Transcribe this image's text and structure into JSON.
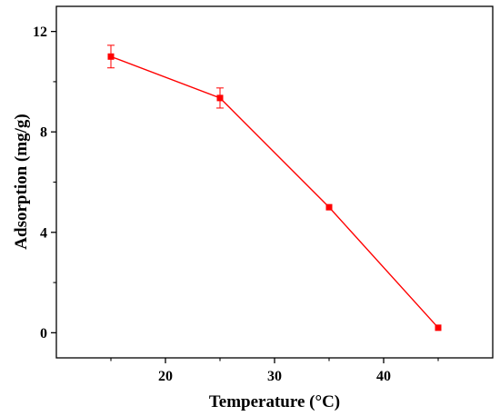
{
  "chart_data": {
    "type": "line",
    "title": "",
    "xlabel": "Temperature (°C)",
    "ylabel": "Adsorption (mg/g)",
    "xlim": [
      10,
      50
    ],
    "ylim": [
      -1,
      13
    ],
    "xticks": [
      20,
      30,
      40
    ],
    "yticks": [
      0,
      4,
      8,
      12
    ],
    "grid": false,
    "legend": "none",
    "series": [
      {
        "color": "#ff0000",
        "marker": "square",
        "points": [
          {
            "x": 15,
            "y": 11.0,
            "err": 0.45
          },
          {
            "x": 25,
            "y": 9.35,
            "err": 0.4
          },
          {
            "x": 35,
            "y": 5.0,
            "err": 0.0
          },
          {
            "x": 45,
            "y": 0.2,
            "err": 0.0
          }
        ]
      }
    ]
  }
}
